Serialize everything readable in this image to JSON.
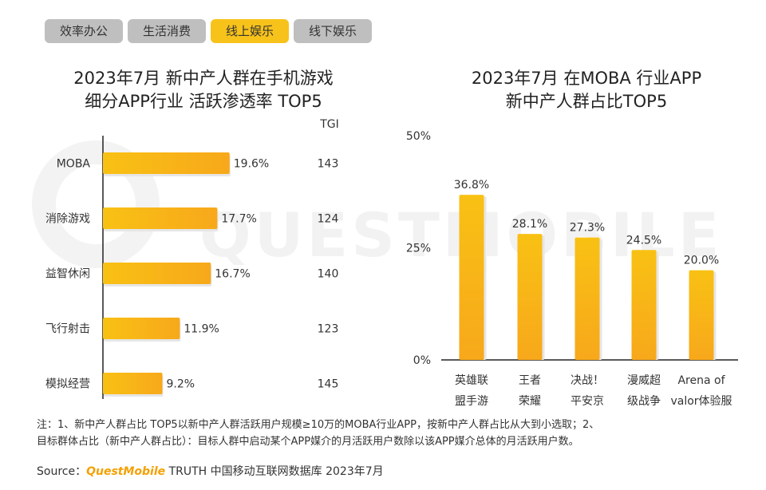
{
  "tabs": [
    "效率办公",
    "生活消费",
    "线上娱乐",
    "线下娱乐"
  ],
  "active_tab": 2,
  "watermark": "QUESTMOBILE",
  "chart_data": [
    {
      "type": "bar",
      "orientation": "horizontal",
      "title_line1": "2023年7月 新中产人群在手机游戏",
      "title_line2": "细分APP行业 活跃渗透率 TOP5",
      "extra_column_label": "TGI",
      "categories": [
        "MOBA",
        "消除游戏",
        "益智休闲",
        "飞行射击",
        "模拟经营"
      ],
      "values": [
        19.6,
        17.7,
        16.7,
        11.9,
        9.2
      ],
      "value_labels": [
        "19.6%",
        "17.7%",
        "16.7%",
        "11.9%",
        "9.2%"
      ],
      "tgi": [
        "143",
        "124",
        "140",
        "123",
        "145"
      ],
      "xlim": [
        0,
        20
      ],
      "bar_color": "#f9c114"
    },
    {
      "type": "bar",
      "orientation": "vertical",
      "title_line1": "2023年7月 在MOBA 行业APP",
      "title_line2": "新中产人群占比TOP5",
      "categories": [
        [
          "英雄联",
          "盟手游"
        ],
        [
          "王者",
          "荣耀"
        ],
        [
          "决战！",
          "平安京"
        ],
        [
          "漫威超",
          "级战争"
        ],
        [
          "Arena of",
          "valor体验服"
        ]
      ],
      "values": [
        36.8,
        28.1,
        27.3,
        24.5,
        20.0
      ],
      "value_labels": [
        "36.8%",
        "28.1%",
        "27.3%",
        "24.5%",
        "20.0%"
      ],
      "ylim": [
        0,
        50
      ],
      "yticks": [
        "0%",
        "25%",
        "50%"
      ],
      "bar_color": "#f9c114"
    }
  ],
  "note": {
    "line1": "注：1、新中产人群占比 TOP5以新中产人群活跃用户规模≥10万的MOBA行业APP，按新中产人群占比从大到小选取；2、",
    "line2": "目标群体占比（新中产人群占比）：目标人群中启动某个APP媒介的月活跃用户数除以该APP媒介总体的月活跃用户数。"
  },
  "source": {
    "label": "Source：",
    "brand": "QuestMobile",
    "rest": " TRUTH 中国移动互联网数据库 2023年7月"
  }
}
